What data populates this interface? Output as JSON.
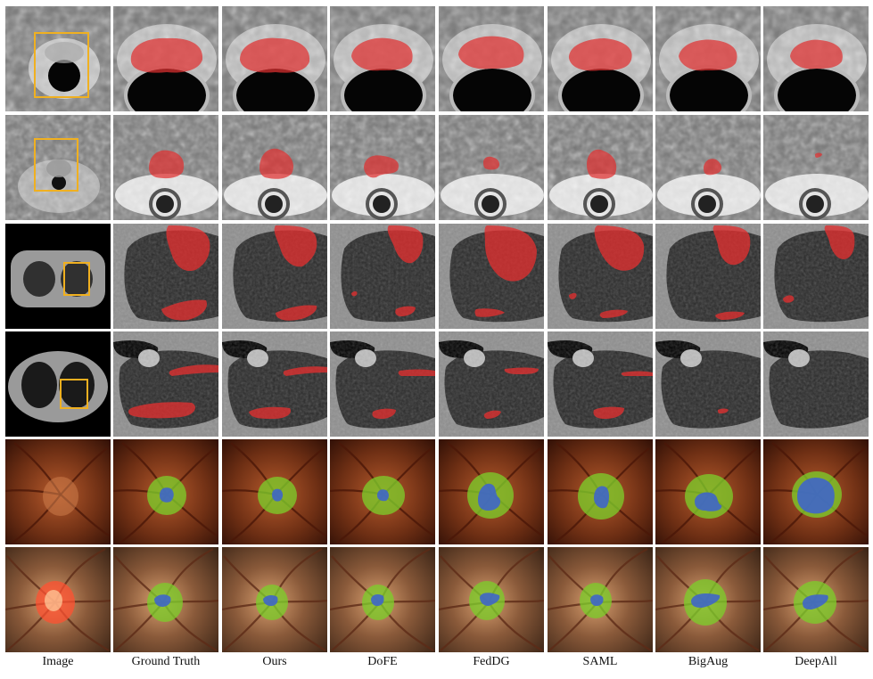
{
  "columns": [
    "Image",
    "Ground Truth",
    "Ours",
    "DoFE",
    "FedDG",
    "SAML",
    "BigAug",
    "DeepAll"
  ],
  "rows": [
    {
      "modality": "prostate-mri",
      "has_roi_box": true
    },
    {
      "modality": "prostate-mri",
      "has_roi_box": true
    },
    {
      "modality": "lung-ct",
      "has_roi_box": true
    },
    {
      "modality": "lung-ct",
      "has_roi_box": true
    },
    {
      "modality": "fundus",
      "has_roi_box": false
    },
    {
      "modality": "fundus",
      "has_roi_box": false
    }
  ],
  "colors": {
    "lesion_overlay": "#e03030",
    "roi_box": "#f0b020",
    "optic_disc": "#7ccc2a",
    "optic_cup": "#3f66c8"
  }
}
